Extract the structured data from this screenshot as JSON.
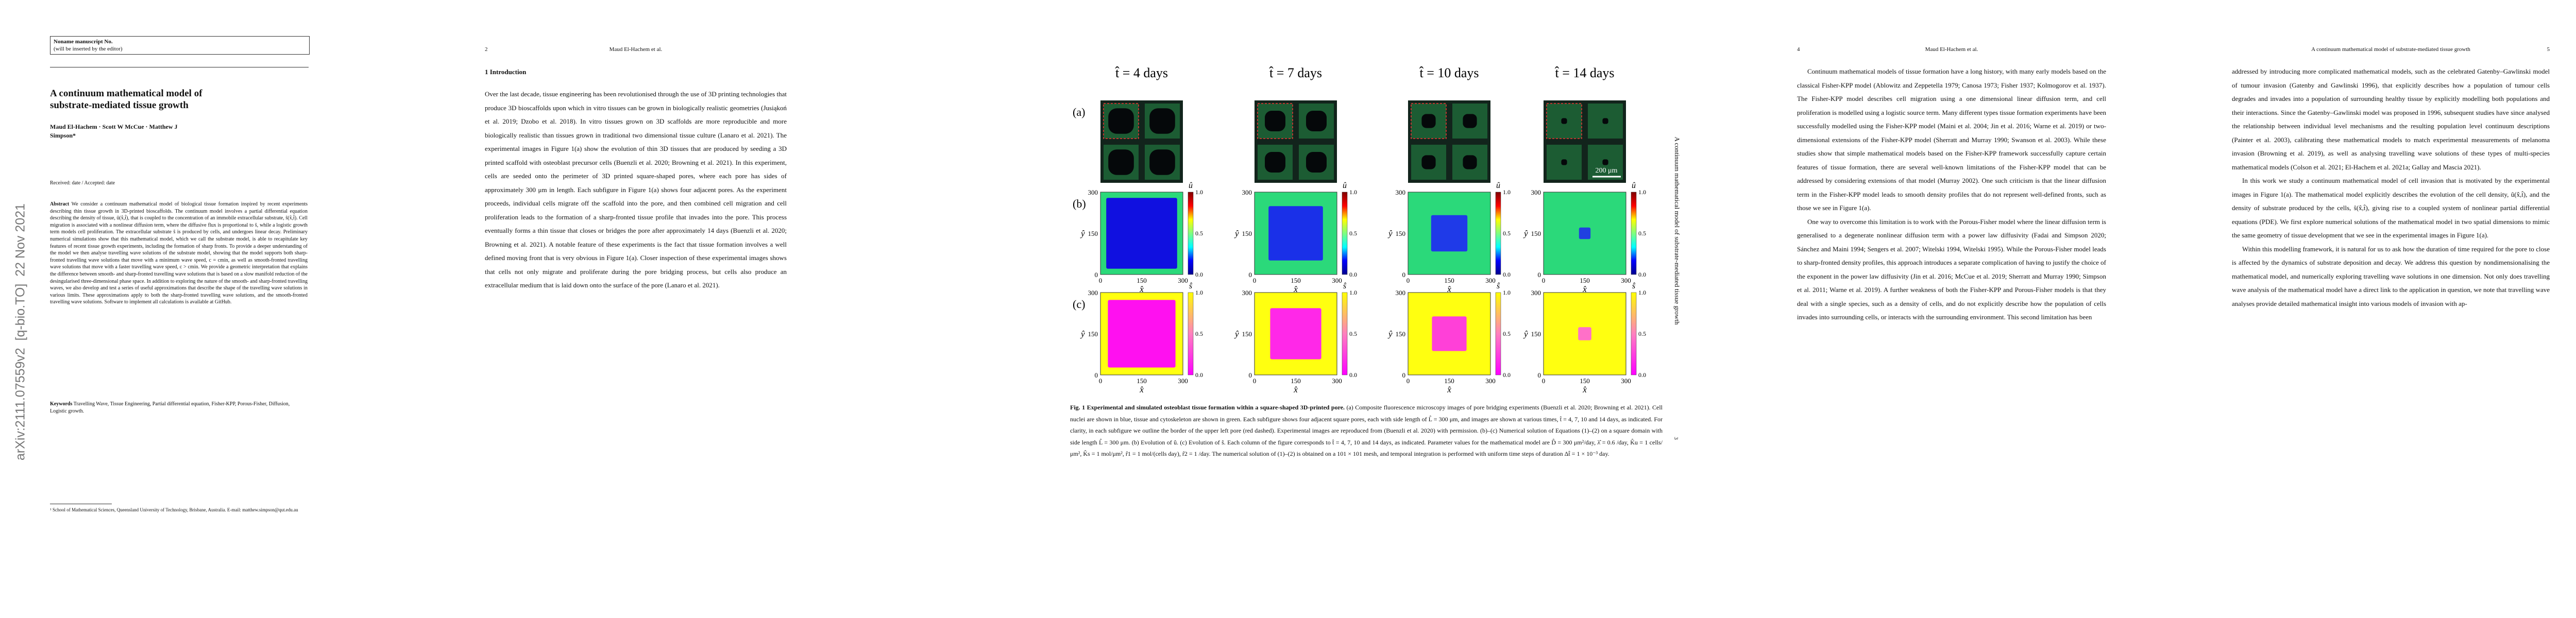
{
  "page1": {
    "manuscript_box": [
      "Noname manuscript No.",
      "(will be inserted by the editor)"
    ],
    "title": "A continuum mathematical model of substrate-mediated tissue growth",
    "authors": "Maud El-Hachem · Scott W McCue · Matthew J Simpson*",
    "received": "Received: date / Accepted: date",
    "abstract_label": "Abstract",
    "abstract": "We consider a continuum mathematical model of biological tissue formation inspired by recent experiments describing thin tissue growth in 3D-printed bioscaffolds. The continuum model involves a partial differential equation describing the density of tissue, û(x̂,t̂), that is coupled to the concentration of an immobile extracellular substrate, ŝ(x̂,t̂). Cell migration is associated with a nonlinear diffusion term, where the diffusive flux is proportional to ŝ, while a logistic growth term models cell proliferation. The extracellular substrate ŝ is produced by cells, and undergoes linear decay. Preliminary numerical simulations show that this mathematical model, which we call the substrate model, is able to recapitulate key features of recent tissue growth experiments, including the formation of sharp fronts. To provide a deeper understanding of the model we then analyse travelling wave solutions of the substrate model, showing that the model supports both sharp-fronted travelling wave solutions that move with a minimum wave speed, c = cmin, as well as smooth-fronted travelling wave solutions that move with a faster travelling wave speed, c > cmin. We provide a geometric interpretation that explains the difference between smooth- and sharp-fronted travelling wave solutions that is based on a slow manifold reduction of the desingularised three-dimensional phase space. In addition to exploring the nature of the smooth- and sharp-fronted travelling waves, we also develop and test a series of useful approximations that describe the shape of the travelling wave solutions in various limits. These approximations apply to both the sharp-fronted travelling wave solutions, and the smooth-fronted travelling wave solutions. Software to implement all calculations is available at GitHub.",
    "keywords_label": "Keywords",
    "keywords": "Travelling Wave, Tissue Engineering, Partial differential equation, Fisher-KPP, Porous-Fisher, Diffusion, Logistic growth.",
    "footnote": "¹ School of Mathematical Sciences, Queensland University of Technology, Brisbane, Australia. E-mail: matthew.simpson@qut.edu.au",
    "arxiv_stamp": "arXiv:2111.07559v2  [q-bio.TO]  22 Nov 2021"
  },
  "page2": {
    "page_number": "2",
    "running_head": "Maud El-Hachem et al.",
    "section": "1 Introduction",
    "paragraph": "Over the last decade, tissue engineering has been revolutionised through the use of 3D printing technologies that produce 3D bioscaffolds upon which in vitro tissues can be grown in biologically realistic geometries (Jusiąkoń et al. 2019; Dzobo et al. 2018). In vitro tissues grown on 3D scaffolds are more reproducible and more biologically realistic than tissues grown in traditional two dimensional tissue culture (Lanaro et al. 2021). The experimental images in Figure 1(a) show the evolution of thin 3D tissues that are produced by seeding a 3D printed scaffold with osteoblast precursor cells (Buenzli et al. 2020; Browning et al. 2021). In this experiment, cells are seeded onto the perimeter of 3D printed square-shaped pores, where each pore has sides of approximately 300 μm in length. Each subfigure in Figure 1(a) shows four adjacent pores. As the experiment proceeds, individual cells migrate off the scaffold into the pore, and then combined cell migration and cell proliferation leads to the formation of a sharp-fronted tissue profile that invades into the pore. This process eventually forms a thin tissue that closes or bridges the pore after approximately 14 days (Buenzli et al. 2020; Browning et al. 2021). A notable feature of these experiments is the fact that tissue formation involves a well defined moving front that is very obvious in Figure 1(a). Closer inspection of these experimental images shows that cells not only migrate and proliferate during the pore bridging process, but cells also produce an extracellular medium that is laid down onto the surface of the pore (Lanaro et al. 2021)."
  },
  "page3": {
    "figure": {
      "panel_labels": [
        "(a)",
        "(b)",
        "(c)"
      ],
      "column_titles": [
        "t̂ = 4 days",
        "t̂ = 7 days",
        "t̂ = 10 days",
        "t̂ = 14 days"
      ],
      "axis_ticks": [
        "0",
        "150",
        "300"
      ],
      "x_label": "x̂",
      "y_label": "ŷ",
      "colorbar_ticks": [
        "0.0",
        "0.5",
        "1.0"
      ],
      "colorbar_labels": [
        "û",
        "ŝ"
      ],
      "scale_bar": "200 μm"
    },
    "caption_label": "Fig. 1",
    "caption_title": "Experimental and simulated osteoblast tissue formation within a square-shaped 3D-printed pore.",
    "caption": "(a) Composite fluorescence microscopy images of pore bridging experiments (Buenzli et al. 2020; Browning et al. 2021). Cell nuclei are shown in blue, tissue and cytoskeleton are shown in green. Each subfigure shows four adjacent square pores, each with side length of L̂ = 300 μm, and images are shown at various times, t̂ = 4, 7, 10 and 14 days, as indicated. For clarity, in each subfigure we outline the border of the upper left pore (red dashed). Experimental images are reproduced from (Buenzli et al. 2020) with permission. (b)–(c) Numerical solution of Equations (1)–(2) on a square domain with side length L̂ = 300 μm. (b) Evolution of û. (c) Evolution of ŝ. Each column of the figure corresponds to t̂ = 4, 7, 10 and 14 days, as indicated. Parameter values for the mathematical model are D̂ = 300 μm²/day, λ̂ = 0.6 /day, K̂u = 1 cells/μm², K̂s = 1 mol/μm², r̂1 = 1 mol/(cells day), r̂2 = 1 /day. The numerical solution of (1)–(2) is obtained on a 101 × 101 mesh, and temporal integration is performed with uniform time steps of duration Δt̂ = 1 × 10⁻³ day.",
    "side_title": "A continuum mathematical model of substrate-mediated tissue growth",
    "page_number": "3"
  },
  "page4": {
    "page_number": "4",
    "running_head": "Maud El-Hachem et al.",
    "paragraphs": [
      "Continuum mathematical models of tissue formation have a long history, with many early models based on the classical Fisher-KPP model (Ablowitz and Zeppetella 1979; Canosa 1973; Fisher 1937; Kolmogorov et al. 1937). The Fisher-KPP model describes cell migration using a one dimensional linear diffusion term, and cell proliferation is modelled using a logistic source term. Many different types tissue formation experiments have been successfully modelled using the Fisher-KPP model (Maini et al. 2004; Jin et al. 2016; Warne et al. 2019) or two-dimensional extensions of the Fisher-KPP model (Sherratt and Murray 1990; Swanson et al. 2003). While these studies show that simple mathematical models based on the Fisher-KPP framework successfully capture certain features of tissue formation, there are several well-known limitations of the Fisher-KPP model that can be addressed by considering extensions of that model (Murray 2002). One such criticism is that the linear diffusion term in the Fisher-KPP model leads to smooth density profiles that do not represent well-defined fronts, such as those we see in Figure 1(a).",
      "One way to overcome this limitation is to work with the Porous-Fisher model where the linear diffusion term is generalised to a degenerate nonlinear diffusion term with a power law diffusivity (Fadai and Simpson 2020; Sánchez and Maini 1994; Sengers et al. 2007; Witelski 1994, Witelski 1995). While the Porous-Fisher model leads to sharp-fronted density profiles, this approach introduces a separate complication of having to justify the choice of the exponent in the power law diffusivity (Jin et al. 2016; McCue et al. 2019; Sherratt and Murray 1990; Simpson et al. 2011; Warne et al. 2019). A further weakness of both the Fisher-KPP and Porous-Fisher models is that they deal with a single species, such as a density of cells, and do not explicitly describe how the population of cells invades into surrounding cells, or interacts with the surrounding environment. This second limitation has been"
    ]
  },
  "page5": {
    "page_number": "5",
    "running_head": "A continuum mathematical model of substrate-mediated tissue growth",
    "paragraphs": [
      "addressed by introducing more complicated mathematical models, such as the celebrated Gatenby–Gawlinski model of tumour invasion (Gatenby and Gawlinski 1996), that explicitly describes how a population of tumour cells degrades and invades into a population of surrounding healthy tissue by explicitly modelling both populations and their interactions. Since the Gatenby–Gawlinski model was proposed in 1996, subsequent studies have since analysed the relationship between individual level mechanisms and the resulting population level continuum descriptions (Painter et al. 2003), calibrating these mathematical models to match experimental measurements of melanoma invasion (Browning et al. 2019), as well as analysing travelling wave solutions of these types of multi-species mathematical models (Colson et al. 2021; El-Hachem et al. 2021a; Gallay and Mascia 2021).",
      "In this work we study a continuum mathematical model of cell invasion that is motivated by the experimental images in Figure 1(a). The mathematical model explicitly describes the evolution of the cell density, û(x̂,t̂), and the density of substrate produced by the cells, ŝ(x̂,t̂), giving rise to a coupled system of nonlinear partial differential equations (PDE). We first explore numerical solutions of the mathematical model in two spatial dimensions to mimic the same geometry of tissue development that we see in the experimental images in Figure 1(a).",
      "Within this modelling framework, it is natural for us to ask how the duration of time required for the pore to close is affected by the dynamics of substrate deposition and decay. We address this question by nondimensionalising the mathematical model, and numerically exploring travelling wave solutions in one dimension. Not only does travelling wave analysis of the mathematical model have a direct link to the application in question, we note that travelling wave analyses provide detailed mathematical insight into various models of invasion with ap-"
    ]
  }
}
